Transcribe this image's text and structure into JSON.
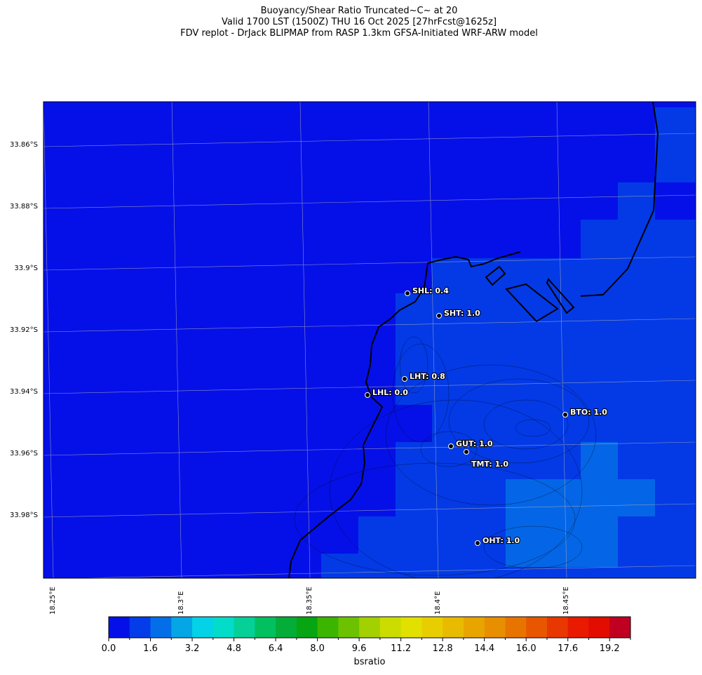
{
  "title": {
    "line1": "Buoyancy/Shear Ratio Truncated~C~    at 20",
    "line2": "Valid 1700 LST (1500Z) THU 16 Oct 2025 [27hrFcst@1625z]",
    "line3": "FDV replot - DrJack BLIPMAP from RASP 1.3km GFSA-Initiated WRF-ARW model"
  },
  "lat_labels": [
    "33.86°S",
    "33.88°S",
    "33.9°S",
    "33.92°S",
    "33.94°S",
    "33.96°S",
    "33.98°S"
  ],
  "lon_labels": [
    "18.25°E",
    "18.3°E",
    "18.35°E",
    "18.4°E",
    "18.45°E"
  ],
  "stations": [
    {
      "label": "SHL: 0.4"
    },
    {
      "label": "SHT: 1.0"
    },
    {
      "label": "LHT: 0.8"
    },
    {
      "label": "LHL: 0.0"
    },
    {
      "label": "BTO: 1.0"
    },
    {
      "label": "GUT: 1.0"
    },
    {
      "label": "TMT: 1.0"
    },
    {
      "label": "OHT: 1.0"
    }
  ],
  "colorbar": {
    "label": "bsratio",
    "min": 0,
    "max": 20,
    "step": 0.8,
    "ticks": [
      "0.0",
      "1.6",
      "3.2",
      "4.8",
      "6.4",
      "8.0",
      "9.6",
      "11.2",
      "12.8",
      "14.4",
      "16.0",
      "17.6",
      "19.2"
    ],
    "colors": [
      "#0510e8",
      "#033ce8",
      "#036ee8",
      "#04a6e6",
      "#04d2e6",
      "#03dcc8",
      "#04d098",
      "#02c060",
      "#03ad38",
      "#08a512",
      "#3cb500",
      "#6cc200",
      "#a2d000",
      "#cbdc00",
      "#e2e000",
      "#e8ce00",
      "#e8bb00",
      "#e8a500",
      "#e88f00",
      "#e87400",
      "#e85700",
      "#e83700",
      "#e81a00",
      "#e20d00",
      "#c00020"
    ]
  }
}
